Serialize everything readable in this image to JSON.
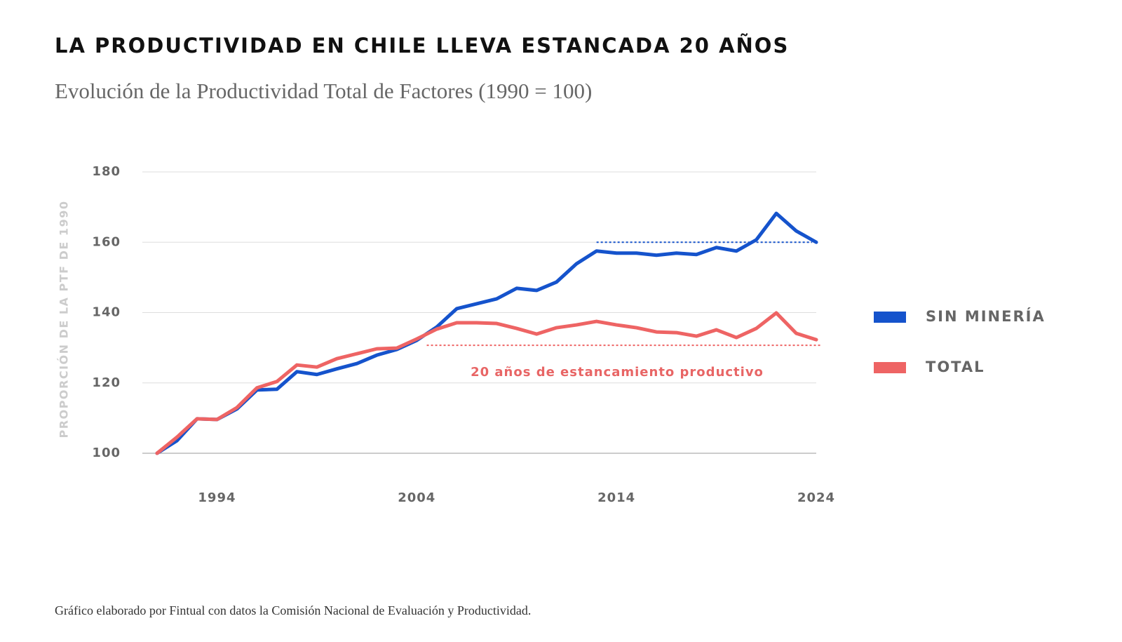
{
  "chart_data": {
    "type": "line",
    "title": "LA PRODUCTIVIDAD EN CHILE LLEVA ESTANCADA 20 AÑOS",
    "subtitle": "Evolución de la Productividad Total de Factores (1990 = 100)",
    "y_label": "PROPORCIÓN DE LA PTF DE 1990",
    "annotation": "20 años de estancamiento productivo",
    "source": "Gráfico elaborado por Fintual con datos la Comisión Nacional de Evaluación y Productividad.",
    "x": [
      1991,
      1992,
      1993,
      1994,
      1995,
      1996,
      1997,
      1998,
      1999,
      2000,
      2001,
      2002,
      2003,
      2004,
      2005,
      2006,
      2007,
      2008,
      2009,
      2010,
      2011,
      2012,
      2013,
      2014,
      2015,
      2016,
      2017,
      2018,
      2019,
      2020,
      2021,
      2022,
      2023,
      2024
    ],
    "series": [
      {
        "name": "SIN MINERÍA",
        "color": "#1553cc",
        "values": [
          100,
          103.6,
          109.8,
          109.6,
          112.6,
          118.0,
          118.2,
          123.2,
          122.4,
          124.0,
          125.5,
          127.9,
          129.5,
          132.1,
          135.9,
          141.1,
          142.5,
          143.9,
          146.9,
          146.3,
          148.7,
          153.9,
          157.5,
          156.9,
          156.9,
          156.3,
          156.9,
          156.5,
          158.5,
          157.5,
          160.7,
          168.2,
          163.2,
          160.0
        ]
      },
      {
        "name": "TOTAL",
        "color": "#ee6464",
        "values": [
          100,
          104.6,
          109.8,
          109.6,
          113.0,
          118.6,
          120.4,
          125.1,
          124.5,
          126.9,
          128.3,
          129.7,
          129.9,
          132.5,
          135.3,
          137.1,
          137.1,
          136.9,
          135.5,
          133.9,
          135.7,
          136.5,
          137.5,
          136.5,
          135.7,
          134.5,
          134.3,
          133.3,
          135.1,
          132.9,
          135.5,
          139.9,
          134.1,
          132.3
        ]
      }
    ],
    "reference_lines": [
      {
        "value": 160,
        "from": 2013,
        "color": "#1553cc"
      },
      {
        "value": 130.7,
        "from": 2004.5,
        "color": "#ee6464"
      }
    ],
    "xlim": [
      1991,
      2024
    ],
    "xticks": [
      1994,
      2004,
      2014,
      2024
    ],
    "ylim": [
      100,
      180
    ],
    "yticks": [
      100,
      120,
      140,
      160,
      180
    ],
    "grid": true,
    "legend": "right"
  }
}
